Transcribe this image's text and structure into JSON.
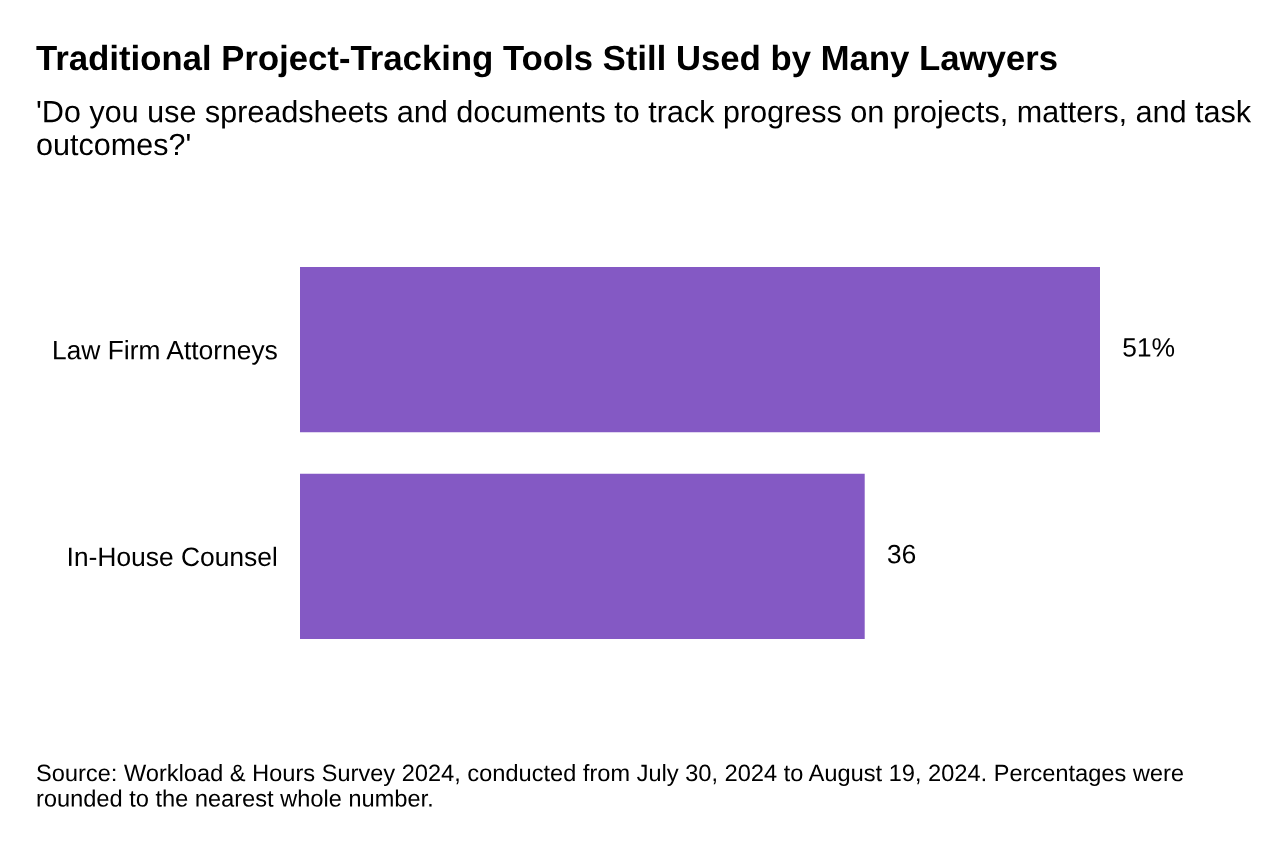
{
  "chart_data": {
    "type": "bar",
    "orientation": "horizontal",
    "title": "Traditional Project-Tracking Tools Still Used by Many Lawyers",
    "subtitle": "'Do you use spreadsheets and documents to track progress on projects, matters, and task outcomes?'",
    "categories": [
      "Law Firm Attorneys",
      "In-House Counsel"
    ],
    "values": [
      51,
      36
    ],
    "value_labels": [
      "51%",
      "36"
    ],
    "color": "#8459c4",
    "annotations": [
      "Source: Workload & Hours Survey 2024, conducted from July 30, 2024 to August 19, 2024. Percentages were rounded to the nearest whole number."
    ]
  }
}
